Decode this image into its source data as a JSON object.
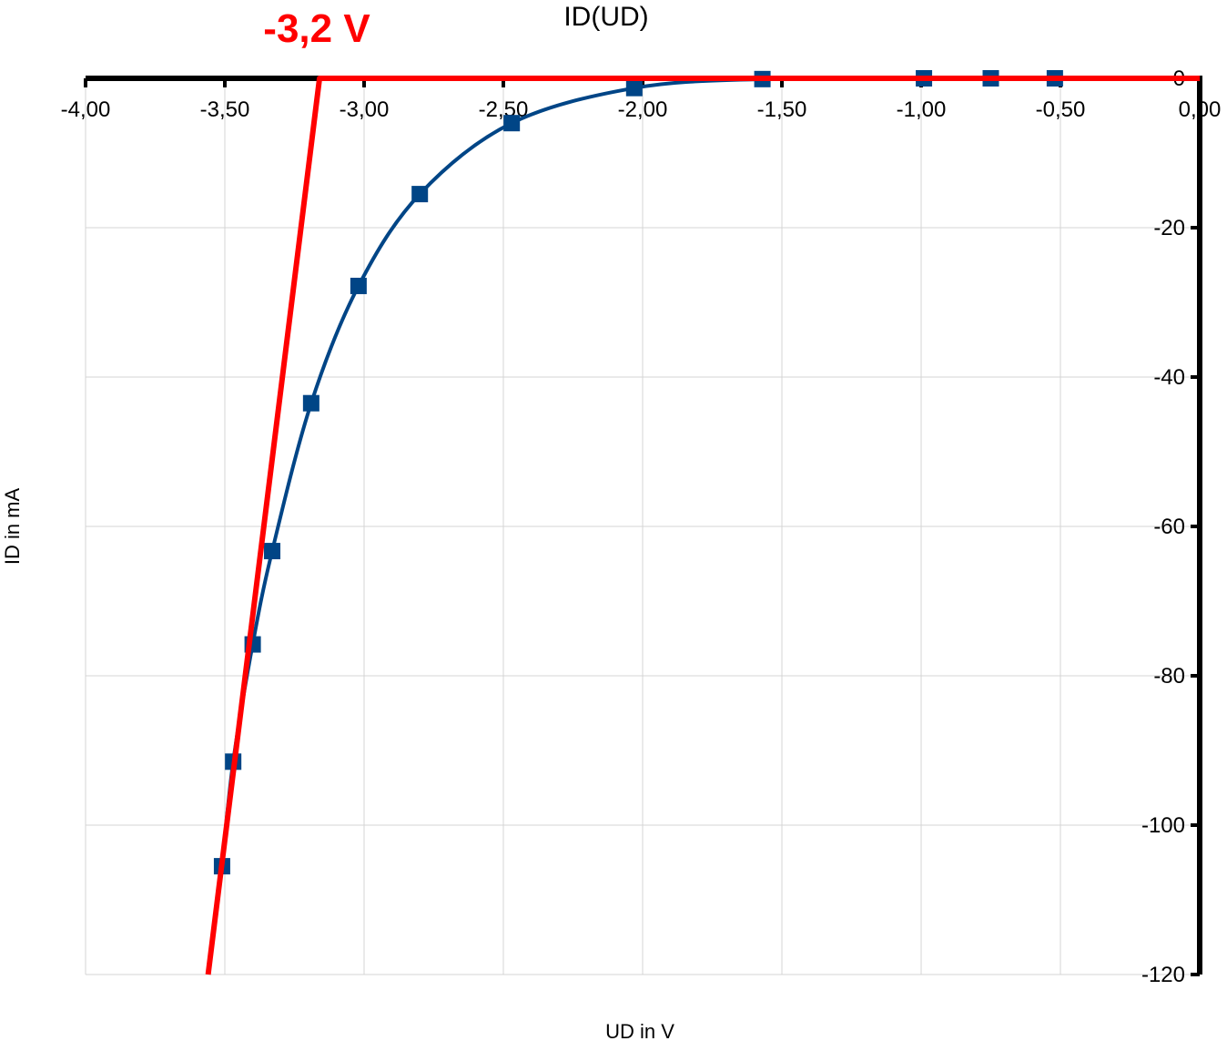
{
  "chart_data": {
    "type": "scatter",
    "title": "ID(UD)",
    "xlabel": "UD in V",
    "ylabel": "ID in mA",
    "xlim": [
      -4.0,
      0.0
    ],
    "ylim": [
      -120,
      0
    ],
    "x_ticks": [
      -4.0,
      -3.5,
      -3.0,
      -2.5,
      -2.0,
      -1.5,
      -1.0,
      -0.5,
      0.0
    ],
    "x_tick_labels": [
      "-4,00",
      "-3,50",
      "-3,00",
      "-2,50",
      "-2,00",
      "-1,50",
      "-1,00",
      "-0,50",
      "0,00"
    ],
    "y_ticks": [
      0,
      -20,
      -40,
      -60,
      -80,
      -100,
      -120
    ],
    "y_tick_labels": [
      "0",
      "-20",
      "-40",
      "-60",
      "-80",
      "-100",
      "-120"
    ],
    "grid": true,
    "legend": "none",
    "series": [
      {
        "color": "#004586",
        "marker": "square",
        "line": "smooth",
        "x": [
          -3.51,
          -3.47,
          -3.4,
          -3.33,
          -3.19,
          -3.02,
          -2.8,
          -2.47,
          -2.03,
          -1.57,
          -0.99,
          -0.75,
          -0.52
        ],
        "y": [
          -105.5,
          -91.5,
          -75.8,
          -63.3,
          -43.5,
          -27.8,
          -15.5,
          -6.0,
          -1.3,
          -0.1,
          0.0,
          0.0,
          0.0
        ]
      },
      {
        "color": "#ff0000",
        "marker": "none",
        "line": "straight",
        "x": [
          -3.56,
          -3.16,
          0.0
        ],
        "y": [
          -120,
          0,
          0
        ]
      }
    ],
    "annotations": [
      {
        "text": "-3,2 V",
        "color": "#ff0000",
        "x": -3.16,
        "y": 0
      }
    ]
  }
}
